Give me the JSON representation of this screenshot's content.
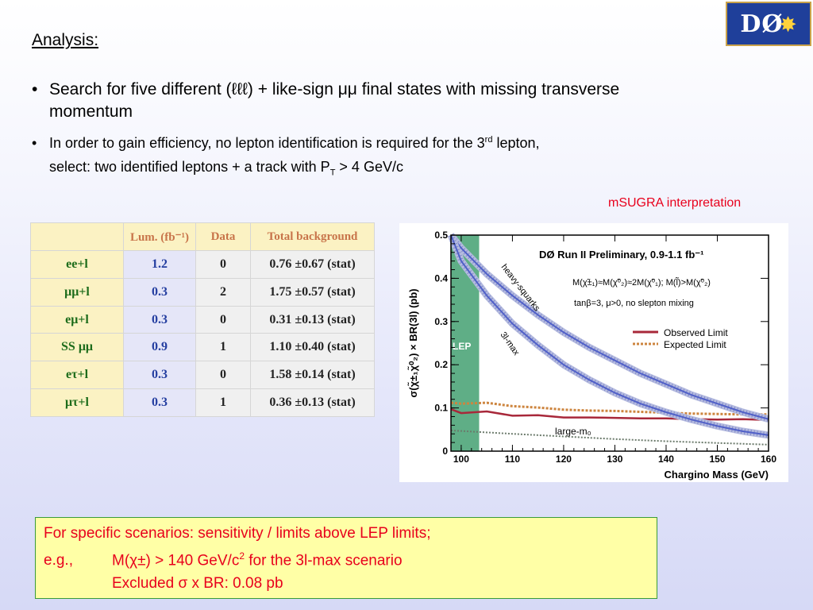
{
  "logo": {
    "text": "DØ"
  },
  "heading": "Analysis:",
  "bullets": [
    {
      "line1": "Search for five different  (ℓℓℓ)   +  like-sign μμ final states with missing transverse",
      "line2": "momentum"
    },
    {
      "line1_pre": "In order to gain efficiency, no lepton identification is required for the 3",
      "line1_sup": "rd",
      "line1_post": " lepton,",
      "line2_pre": "select: two identified leptons + a track with P",
      "line2_sub": "T",
      "line2_post": " > 4 GeV/c"
    }
  ],
  "msugra_label": "mSUGRA interpretation",
  "table": {
    "headers": [
      "",
      "Lum. (fb⁻¹)",
      "Data",
      "Total background"
    ],
    "rows": [
      [
        "ee+l",
        "1.2",
        "0",
        "0.76 ±0.67 (stat)"
      ],
      [
        "μμ+l",
        "0.3",
        "2",
        "1.75 ±0.57 (stat)"
      ],
      [
        "eμ+l",
        "0.3",
        "0",
        "0.31 ±0.13 (stat)"
      ],
      [
        "SS μμ",
        "0.9",
        "1",
        "1.10 ±0.40 (stat)"
      ],
      [
        "eτ+l",
        "0.3",
        "0",
        "1.58 ±0.14 (stat)"
      ],
      [
        "μτ+l",
        "0.3",
        "1",
        "0.36 ±0.13 (stat)"
      ]
    ]
  },
  "chart_data": {
    "type": "line",
    "title": "DØ Run II Preliminary, 0.9-1.1 fb⁻¹",
    "xlabel": "Chargino Mass (GeV)",
    "ylabel": "σ(χ̃±₁χ̃⁰₂) × BR(3l) (pb)",
    "xlim": [
      98,
      160
    ],
    "ylim": [
      0,
      0.5
    ],
    "x_ticks": [
      100,
      110,
      120,
      130,
      140,
      150,
      160
    ],
    "y_ticks": [
      0,
      0.1,
      0.2,
      0.3,
      0.4,
      0.5
    ],
    "y_tick_labels": [
      "0",
      "0.1",
      "0.2",
      "0.3",
      "0.4",
      "0.5"
    ],
    "annotations": {
      "mass_relation": "M(χ̃±₁)≈M(χ̃⁰₂)≈2M(χ̃⁰₁); M(l̃)>M(χ̃⁰₂)",
      "params": "tanβ=3, μ>0, no slepton mixing",
      "lep_label": "LEP",
      "lep_excluded_below": 103.5
    },
    "series": [
      {
        "name": "Observed Limit",
        "color": "#a8283a",
        "style": "solid",
        "x": [
          98,
          100,
          105,
          110,
          115,
          120,
          125,
          130,
          135,
          140,
          145,
          150,
          155,
          160
        ],
        "y": [
          0.097,
          0.088,
          0.092,
          0.082,
          0.083,
          0.078,
          0.078,
          0.077,
          0.076,
          0.076,
          0.074,
          0.073,
          0.074,
          0.072
        ]
      },
      {
        "name": "Expected Limit",
        "color": "#cd853f",
        "style": "dotted",
        "x": [
          98,
          100,
          105,
          110,
          115,
          120,
          125,
          130,
          135,
          140,
          145,
          150,
          155,
          160
        ],
        "y": [
          0.112,
          0.11,
          0.112,
          0.104,
          0.101,
          0.096,
          0.094,
          0.093,
          0.091,
          0.089,
          0.087,
          0.086,
          0.085,
          0.085
        ]
      },
      {
        "name": "heavy-squarks",
        "color": "#5060c8",
        "style": "band",
        "x": [
          98,
          100,
          105,
          110,
          115,
          120,
          125,
          130,
          135,
          140,
          145,
          150,
          155,
          160
        ],
        "y": [
          0.5,
          0.47,
          0.41,
          0.36,
          0.315,
          0.275,
          0.24,
          0.21,
          0.18,
          0.155,
          0.13,
          0.11,
          0.09,
          0.074
        ]
      },
      {
        "name": "3l-max",
        "color": "#5060c8",
        "style": "band",
        "x": [
          98,
          100,
          105,
          110,
          115,
          120,
          125,
          130,
          135,
          140,
          145,
          150,
          155,
          160
        ],
        "y": [
          0.5,
          0.44,
          0.36,
          0.295,
          0.245,
          0.2,
          0.165,
          0.135,
          0.11,
          0.09,
          0.073,
          0.058,
          0.046,
          0.037
        ]
      },
      {
        "name": "large-m0",
        "color": "#6b7a6b",
        "style": "dotted",
        "x": [
          98,
          110,
          120,
          130,
          140,
          150,
          160
        ],
        "y": [
          0.048,
          0.04,
          0.034,
          0.028,
          0.023,
          0.019,
          0.015
        ]
      }
    ],
    "curve_labels": [
      "heavy-squarks",
      "3l-max",
      "large-m₀"
    ]
  },
  "summary": {
    "line1": "For specific scenarios: sensitivity / limits above LEP limits;",
    "line2_lead": "e.g.,",
    "line2_text": "M(χ±) > 140 GeV/c",
    "line2_sup": "2",
    "line2_post": " for the 3l-max scenario",
    "line3_text": "Excluded σ x BR:   0.08 pb"
  }
}
